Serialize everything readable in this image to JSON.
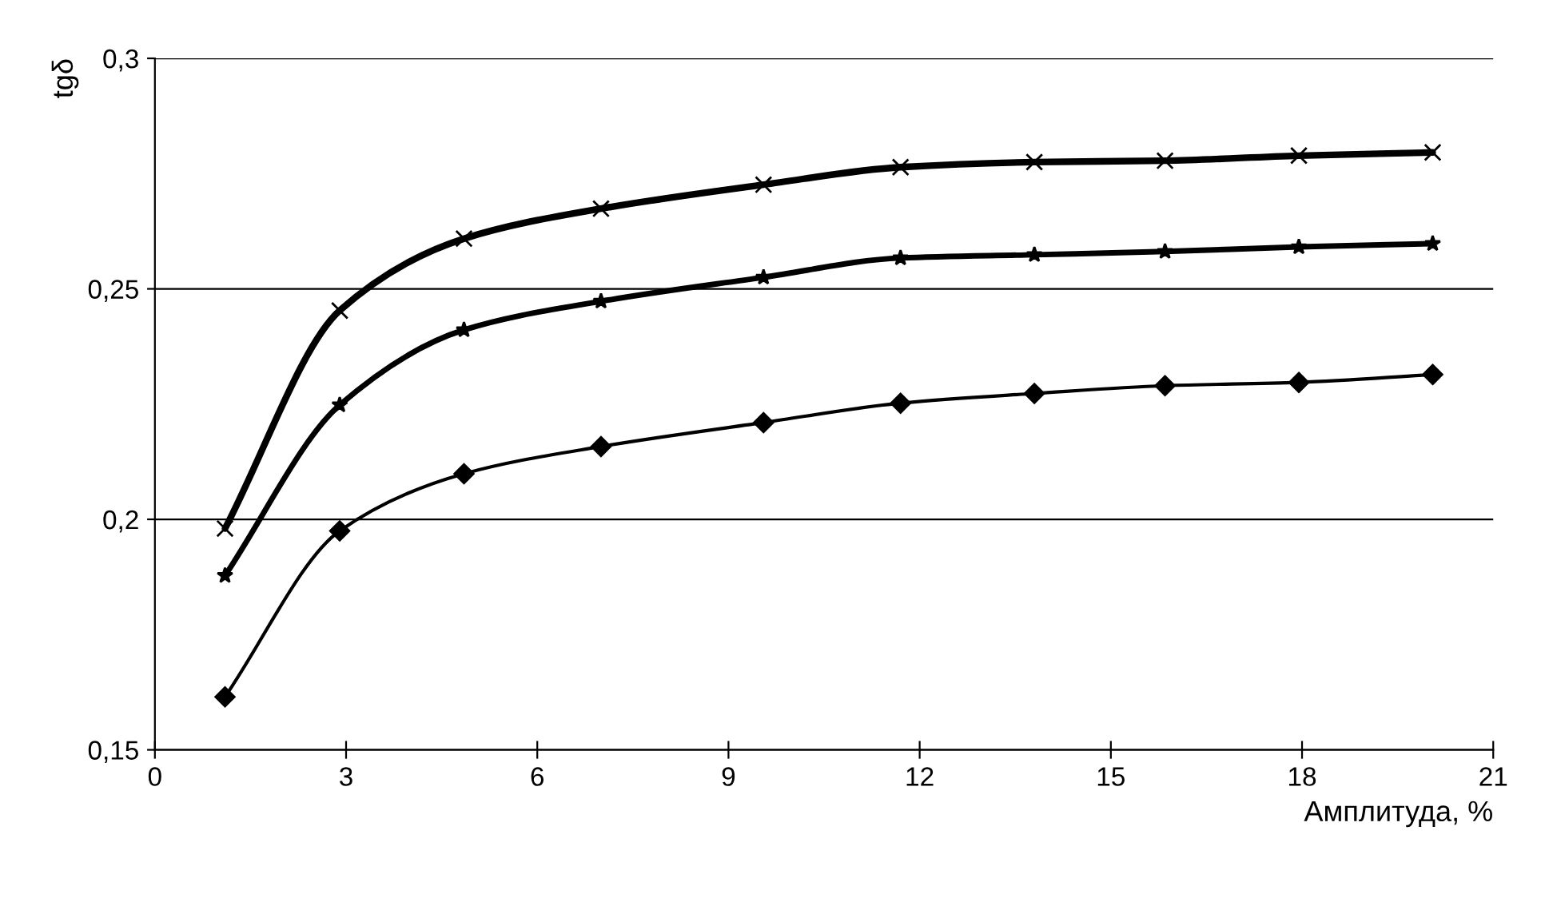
{
  "chart_data": {
    "type": "line",
    "xlabel": "Амплитуда, %",
    "ylabel": "tgδ",
    "x": [
      1.1,
      2.9,
      4.85,
      7,
      9.55,
      11.7,
      13.8,
      15.85,
      17.95,
      20.05
    ],
    "series": [
      {
        "color": "#000000",
        "marker": "cross",
        "values": [
          0.198,
          0.2453,
          0.2609,
          0.2674,
          0.2726,
          0.2764,
          0.2775,
          0.2778,
          0.2789,
          0.2796
        ]
      },
      {
        "color": "#000000",
        "marker": "star",
        "values": [
          0.1878,
          0.2248,
          0.2411,
          0.2473,
          0.2525,
          0.2567,
          0.2574,
          0.2581,
          0.2591,
          0.2598
        ]
      },
      {
        "color": "#000000",
        "marker": "diamond",
        "values": [
          0.1615,
          0.1975,
          0.2099,
          0.2158,
          0.221,
          0.2252,
          0.2273,
          0.229,
          0.2297,
          0.2314
        ]
      }
    ],
    "xlim": [
      0,
      21
    ],
    "xticks": [
      0,
      3,
      6,
      9,
      12,
      15,
      18,
      21
    ],
    "ylim": [
      0.15,
      0.3
    ],
    "yticks": [
      {
        "value": 0.15,
        "label": "0,15"
      },
      {
        "value": 0.2,
        "label": "0,2"
      },
      {
        "value": 0.25,
        "label": "0,25"
      },
      {
        "value": 0.3,
        "label": "0,3"
      }
    ],
    "grid": "y",
    "legend": false,
    "line_style": "solid"
  }
}
